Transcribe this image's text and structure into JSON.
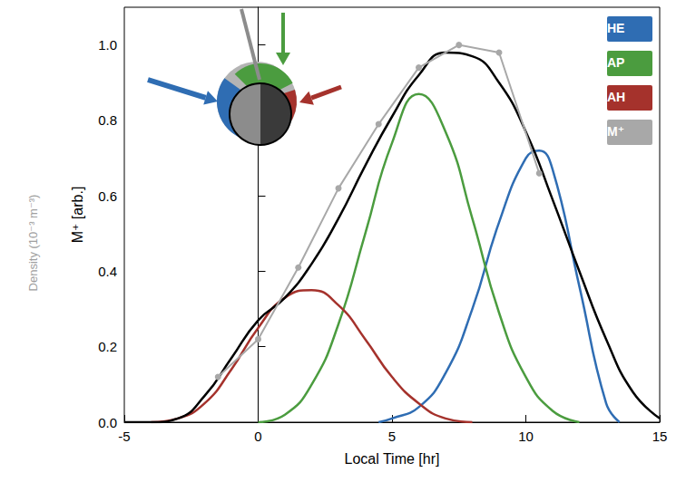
{
  "chart_data": {
    "type": "line",
    "x_label": "Local Time [hr]",
    "y_label": "M⁺ [arb.]",
    "annotations": [
      "Density (10⁻³ m⁻³)"
    ],
    "xlim": [
      -5,
      15
    ],
    "xticks": [
      -5,
      0,
      5,
      10,
      15
    ],
    "ylim": [
      0,
      1.1
    ],
    "yticks": [
      {
        "value": 0,
        "label": "0.0"
      },
      0.2,
      0.4,
      0.6,
      0.8,
      {
        "value": 1,
        "label": "1.0"
      }
    ],
    "grid": false,
    "legend": "upper right",
    "series": [
      {
        "name": "HE",
        "color": "#2f6db3",
        "line_style": "solid",
        "x": [
          4.5,
          5,
          6,
          7,
          8,
          9,
          10,
          10.5,
          11,
          12,
          13,
          13.5
        ],
        "values": [
          0,
          0.01,
          0.04,
          0.13,
          0.3,
          0.53,
          0.7,
          0.72,
          0.67,
          0.36,
          0.05,
          0
        ]
      },
      {
        "name": "AP",
        "color": "#4b9c3f",
        "line_style": "solid",
        "x": [
          0,
          1,
          2,
          3,
          4,
          5,
          6,
          7,
          8,
          9,
          10,
          11,
          12
        ],
        "values": [
          0,
          0.02,
          0.1,
          0.26,
          0.5,
          0.74,
          0.87,
          0.77,
          0.54,
          0.29,
          0.12,
          0.03,
          0
        ]
      },
      {
        "name": "AH",
        "color": "#a5322c",
        "line_style": "solid",
        "x": [
          -4,
          -3,
          -2,
          -1,
          0,
          1,
          2,
          3,
          4,
          5,
          6,
          7,
          8
        ],
        "values": [
          0,
          0.01,
          0.05,
          0.14,
          0.25,
          0.33,
          0.35,
          0.31,
          0.22,
          0.12,
          0.05,
          0.01,
          0
        ]
      },
      {
        "name": "M⁺",
        "color": "#a8a8a8",
        "marker": "circle",
        "line_style": "solid",
        "x": [
          -1.5,
          0,
          1.5,
          3,
          4.5,
          6,
          7.5,
          9,
          10.5
        ],
        "values": [
          0.12,
          0.22,
          0.41,
          0.62,
          0.79,
          0.94,
          1.0,
          0.98,
          0.66
        ]
      },
      {
        "color": "#000000",
        "line_style": "solid",
        "x": [
          -5,
          -4,
          -3,
          -2,
          -1,
          0,
          1,
          2,
          3,
          4,
          5,
          6,
          7,
          8,
          9,
          10,
          11,
          12,
          13,
          14,
          15
        ],
        "values": [
          0,
          0,
          0.01,
          0.07,
          0.17,
          0.27,
          0.33,
          0.42,
          0.54,
          0.68,
          0.81,
          0.92,
          0.98,
          0.97,
          0.9,
          0.77,
          0.59,
          0.4,
          0.22,
          0.08,
          0.01
        ]
      }
    ]
  }
}
